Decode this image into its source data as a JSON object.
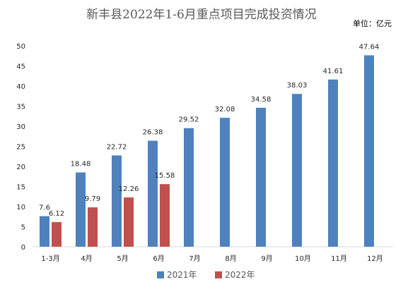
{
  "chart_data": {
    "type": "bar",
    "title": "新丰县2022年1-6月重点项目完成投资情况",
    "unit": "单位：亿元",
    "categories": [
      "1-3月",
      "4月",
      "5月",
      "6月",
      "7月",
      "8月",
      "9月",
      "10月",
      "11月",
      "12月"
    ],
    "series": [
      {
        "name": "2021年",
        "color": "#4F81BD",
        "values": [
          7.6,
          18.48,
          22.72,
          26.38,
          29.52,
          32.08,
          34.58,
          38.03,
          41.61,
          47.64
        ],
        "labels": [
          "7.6",
          "18.48",
          "22.72",
          "26.38",
          "29.52",
          "32.08",
          "34.58",
          "38.03",
          "41.61",
          "47.64"
        ]
      },
      {
        "name": "2022年",
        "color": "#C0504D",
        "values": [
          6.12,
          9.79,
          12.26,
          15.58,
          null,
          null,
          null,
          null,
          null,
          null
        ],
        "labels": [
          "6.12",
          "9.79",
          "12.26",
          "15.58",
          "",
          "",
          "",
          "",
          "",
          ""
        ]
      }
    ],
    "yticks": [
      "0",
      "5",
      "10",
      "15",
      "20",
      "25",
      "30",
      "35",
      "40",
      "45",
      "50"
    ],
    "ylim": [
      0,
      50
    ],
    "grid": false,
    "legend_position": "bottom"
  }
}
